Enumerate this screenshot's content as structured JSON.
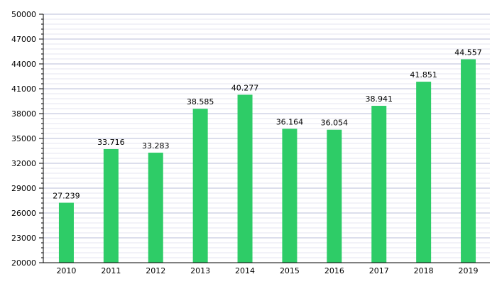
{
  "chart_data": {
    "type": "bar",
    "categories": [
      "2010",
      "2011",
      "2012",
      "2013",
      "2014",
      "2015",
      "2016",
      "2017",
      "2018",
      "2019"
    ],
    "values": [
      27239,
      33716,
      33283,
      38585,
      40277,
      36164,
      36054,
      38941,
      41851,
      44557
    ],
    "data_labels": [
      "27.239",
      "33.716",
      "33.283",
      "38.585",
      "40.277",
      "36.164",
      "36.054",
      "38.941",
      "41.851",
      "44.557"
    ],
    "y_ticks": [
      20000,
      23000,
      26000,
      29000,
      32000,
      35000,
      38000,
      41000,
      44000,
      47000,
      50000
    ],
    "ylim": [
      20000,
      50000
    ],
    "title": "",
    "xlabel": "",
    "ylabel": "",
    "grid": true,
    "legend": "none",
    "colors": {
      "bar": "#2ecc67",
      "grid_major": "#b8bcd8",
      "grid_minor": "#e4e6f0",
      "axis": "#000000"
    }
  }
}
